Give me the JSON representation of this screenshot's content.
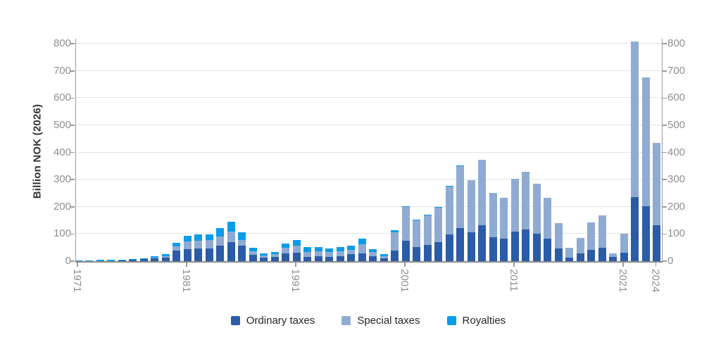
{
  "chart_data": {
    "type": "bar",
    "stacked": true,
    "title": "",
    "ylabel": "Billion NOK (2026)",
    "xlabel": "",
    "ylim": [
      0,
      800
    ],
    "y_ticks": [
      0,
      100,
      200,
      300,
      400,
      500,
      600,
      700,
      800
    ],
    "y_axis_sides": "both",
    "grid": true,
    "legend_position": "bottom",
    "x": [
      1971,
      1972,
      1973,
      1974,
      1975,
      1976,
      1977,
      1978,
      1979,
      1980,
      1981,
      1982,
      1983,
      1984,
      1985,
      1986,
      1987,
      1988,
      1989,
      1990,
      1991,
      1992,
      1993,
      1994,
      1995,
      1996,
      1997,
      1998,
      1999,
      2000,
      2001,
      2002,
      2003,
      2004,
      2005,
      2006,
      2007,
      2008,
      2009,
      2010,
      2011,
      2012,
      2013,
      2014,
      2015,
      2016,
      2017,
      2018,
      2019,
      2020,
      2021,
      2022,
      2023,
      2024
    ],
    "x_tick_labels": [
      "1971",
      "1981",
      "1991",
      "2001",
      "2011",
      "2021",
      "2024"
    ],
    "series": [
      {
        "name": "Ordinary taxes",
        "color": "#2a5ca8",
        "values": [
          1,
          1,
          1,
          1,
          2,
          6,
          8,
          12,
          14,
          40,
          45,
          46,
          47,
          58,
          70,
          57,
          24,
          13,
          16,
          28,
          32,
          16,
          18,
          16,
          18,
          25,
          29,
          17,
          10,
          40,
          74,
          52,
          60,
          69,
          98,
          121,
          107,
          133,
          89,
          82,
          110,
          117,
          102,
          83,
          47,
          12,
          29,
          42,
          48,
          16,
          32,
          235,
          202,
          133
        ]
      },
      {
        "name": "Special taxes",
        "color": "#8fabd1",
        "values": [
          0,
          0,
          0,
          0,
          0,
          0,
          0,
          1,
          5,
          14,
          28,
          30,
          31,
          34,
          40,
          22,
          13,
          8,
          9,
          22,
          25,
          18,
          19,
          18,
          19,
          16,
          34,
          16,
          9,
          67,
          126,
          100,
          109,
          129,
          178,
          230,
          191,
          241,
          163,
          152,
          193,
          213,
          182,
          151,
          92,
          37,
          56,
          101,
          121,
          13,
          68,
          574,
          475,
          302
        ]
      },
      {
        "name": "Royalties",
        "color": "#0c9ce8",
        "values": [
          2,
          2,
          3,
          4,
          3,
          2,
          3,
          6,
          8,
          14,
          21,
          22,
          20,
          29,
          35,
          26,
          11,
          7,
          8,
          14,
          20,
          17,
          15,
          13,
          15,
          16,
          21,
          10,
          8,
          6,
          3,
          2,
          2,
          2,
          2,
          2,
          0,
          0,
          0,
          0,
          0,
          0,
          0,
          0,
          0,
          0,
          0,
          0,
          0,
          0,
          0,
          0,
          0,
          0
        ]
      }
    ]
  },
  "style": {
    "axis_color": "#9a9a9a",
    "grid_color": "#e4e4e4",
    "tick_text_color": "#8f8f8f",
    "axis_title_color": "#333333",
    "legend_text_color": "#262626",
    "background": "#ffffff"
  }
}
